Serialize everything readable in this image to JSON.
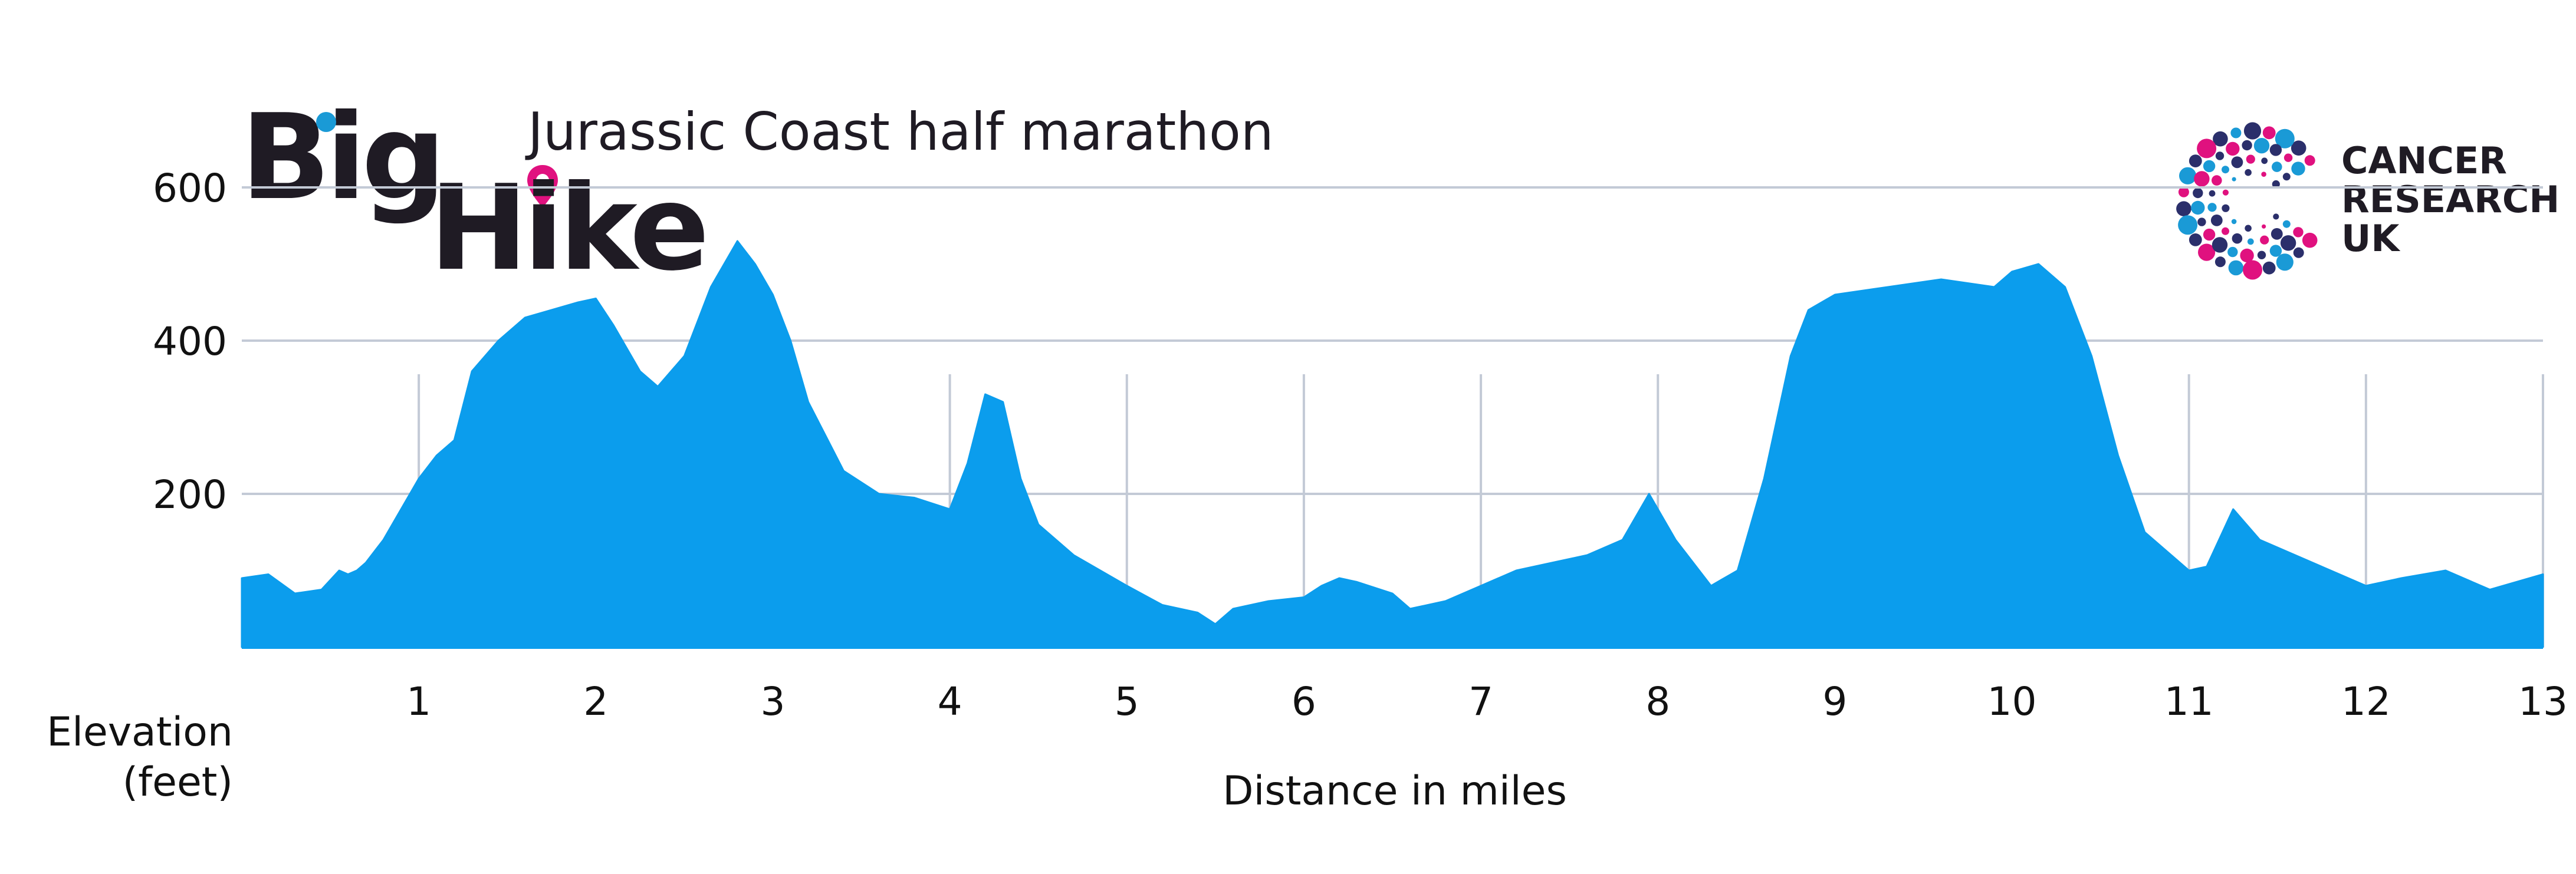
{
  "brand": {
    "logo_line1": "Big",
    "logo_line2": "Hike",
    "event_title": "Jurassic Coast half marathon",
    "partner_line1": "CANCER",
    "partner_line2": "RESEARCH",
    "partner_line3": "UK",
    "colors": {
      "dark": "#1f1b24",
      "blue": "#1a9ad6",
      "pink": "#e0117f",
      "navy": "#2b2f6b"
    }
  },
  "chart_data": {
    "type": "area",
    "title": "Jurassic Coast half marathon",
    "xlabel": "Distance in miles",
    "ylabel_line1": "Elevation",
    "ylabel_line2": "(feet)",
    "xlim": [
      0,
      13
    ],
    "ylim": [
      0,
      700
    ],
    "x_ticks": [
      1,
      2,
      3,
      4,
      5,
      6,
      7,
      8,
      9,
      10,
      11,
      12,
      13
    ],
    "y_ticks": [
      200,
      400,
      600
    ],
    "grid": true,
    "fill_color": "#0b9ded",
    "grid_color": "#c3cad6",
    "series": [
      {
        "name": "Elevation",
        "x": [
          0,
          0.15,
          0.3,
          0.45,
          0.55,
          0.6,
          0.65,
          0.7,
          0.8,
          1.0,
          1.1,
          1.2,
          1.3,
          1.45,
          1.6,
          1.75,
          1.9,
          2.0,
          2.1,
          2.25,
          2.35,
          2.5,
          2.65,
          2.8,
          2.9,
          3.0,
          3.1,
          3.2,
          3.4,
          3.6,
          3.8,
          4.0,
          4.1,
          4.2,
          4.3,
          4.4,
          4.5,
          4.7,
          5.0,
          5.2,
          5.4,
          5.5,
          5.6,
          5.8,
          6.0,
          6.1,
          6.2,
          6.3,
          6.5,
          6.6,
          6.8,
          7.0,
          7.2,
          7.4,
          7.6,
          7.8,
          7.95,
          8.1,
          8.3,
          8.45,
          8.6,
          8.75,
          8.85,
          9.0,
          9.3,
          9.6,
          9.9,
          10.0,
          10.15,
          10.3,
          10.45,
          10.6,
          10.75,
          10.9,
          11.0,
          11.1,
          11.25,
          11.4,
          11.6,
          11.8,
          12.0,
          12.2,
          12.45,
          12.7,
          13.0
        ],
        "values": [
          90,
          95,
          70,
          75,
          100,
          95,
          100,
          110,
          140,
          220,
          250,
          270,
          360,
          400,
          430,
          440,
          450,
          455,
          420,
          360,
          340,
          380,
          470,
          530,
          500,
          460,
          400,
          320,
          230,
          200,
          195,
          180,
          240,
          330,
          320,
          220,
          160,
          120,
          80,
          55,
          45,
          30,
          50,
          60,
          65,
          80,
          90,
          85,
          70,
          50,
          60,
          80,
          100,
          110,
          120,
          140,
          200,
          140,
          80,
          100,
          220,
          380,
          440,
          460,
          470,
          480,
          470,
          490,
          500,
          470,
          380,
          250,
          150,
          120,
          100,
          105,
          180,
          140,
          120,
          100,
          80,
          90,
          100,
          75,
          95
        ]
      }
    ]
  }
}
